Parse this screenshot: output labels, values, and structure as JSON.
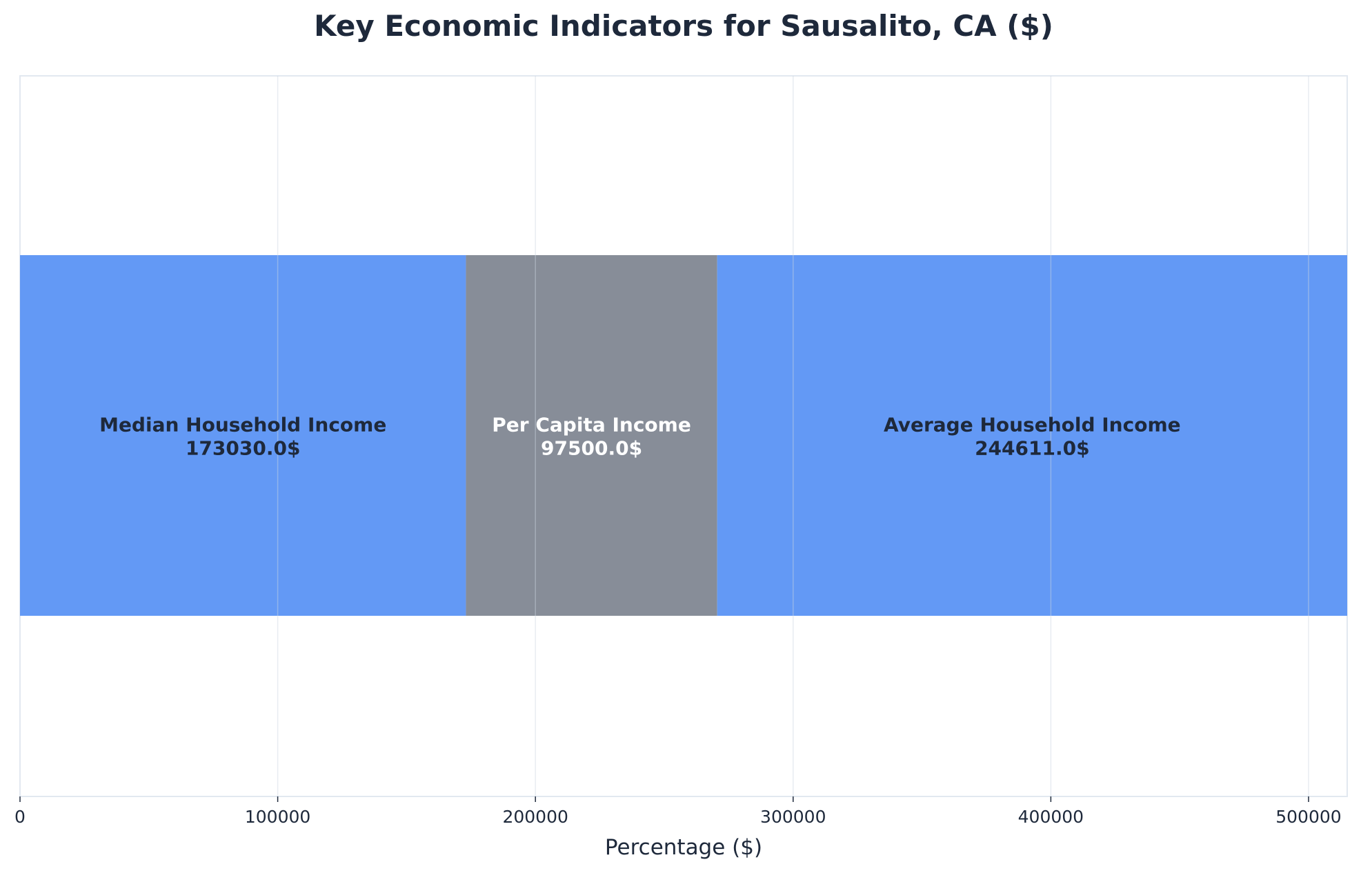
{
  "chart_data": {
    "type": "bar",
    "orientation": "horizontal",
    "stacked": true,
    "title": "Key Economic Indicators for Sausalito, CA ($)",
    "xlabel": "Percentage ($)",
    "ylabel": "",
    "xlim": [
      0,
      515000
    ],
    "xticks": [
      0,
      100000,
      200000,
      300000,
      400000,
      500000
    ],
    "xtick_labels": [
      "0",
      "100000",
      "200000",
      "300000",
      "400000",
      "500000"
    ],
    "grid": true,
    "series": [
      {
        "name": "Median Household Income",
        "value": 173030.0,
        "value_label": "173030.0$",
        "color": "#6399f5",
        "text_color": "#1e293b"
      },
      {
        "name": "Per Capita Income",
        "value": 97500.0,
        "value_label": "97500.0$",
        "color": "#878d98",
        "text_color": "#ffffff"
      },
      {
        "name": "Average Household Income",
        "value": 244611.0,
        "value_label": "244611.0$",
        "color": "#6399f5",
        "text_color": "#1e293b"
      }
    ]
  }
}
